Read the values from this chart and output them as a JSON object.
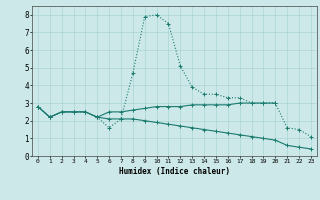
{
  "xlabel": "Humidex (Indice chaleur)",
  "x_values": [
    0,
    1,
    2,
    3,
    4,
    5,
    6,
    7,
    8,
    9,
    10,
    11,
    12,
    13,
    14,
    15,
    16,
    17,
    18,
    19,
    20,
    21,
    22,
    23
  ],
  "line1": [
    2.8,
    2.2,
    2.5,
    2.5,
    2.5,
    2.2,
    1.6,
    2.1,
    4.7,
    7.9,
    8.0,
    7.5,
    5.1,
    3.9,
    3.5,
    3.5,
    3.3,
    3.3,
    3.0,
    3.0,
    3.0,
    1.6,
    1.5,
    1.1
  ],
  "line2": [
    2.8,
    2.2,
    2.5,
    2.5,
    2.5,
    2.2,
    2.5,
    2.5,
    2.6,
    2.7,
    2.8,
    2.8,
    2.8,
    2.9,
    2.9,
    2.9,
    2.9,
    3.0,
    3.0,
    3.0,
    3.0,
    null,
    null,
    null
  ],
  "line3": [
    2.8,
    2.2,
    2.5,
    2.5,
    2.5,
    2.2,
    2.1,
    2.1,
    2.1,
    2.0,
    1.9,
    1.8,
    1.7,
    1.6,
    1.5,
    1.4,
    1.3,
    1.2,
    1.1,
    1.0,
    0.9,
    0.6,
    0.5,
    0.4
  ],
  "line_color": "#1a7a6e",
  "bg_color": "#cce8e8",
  "grid_color": "#aad4d4",
  "ylim": [
    0,
    8.5
  ],
  "xlim": [
    -0.5,
    23.5
  ],
  "yticks": [
    0,
    1,
    2,
    3,
    4,
    5,
    6,
    7,
    8
  ],
  "xticks": [
    0,
    1,
    2,
    3,
    4,
    5,
    6,
    7,
    8,
    9,
    10,
    11,
    12,
    13,
    14,
    15,
    16,
    17,
    18,
    19,
    20,
    21,
    22,
    23
  ]
}
